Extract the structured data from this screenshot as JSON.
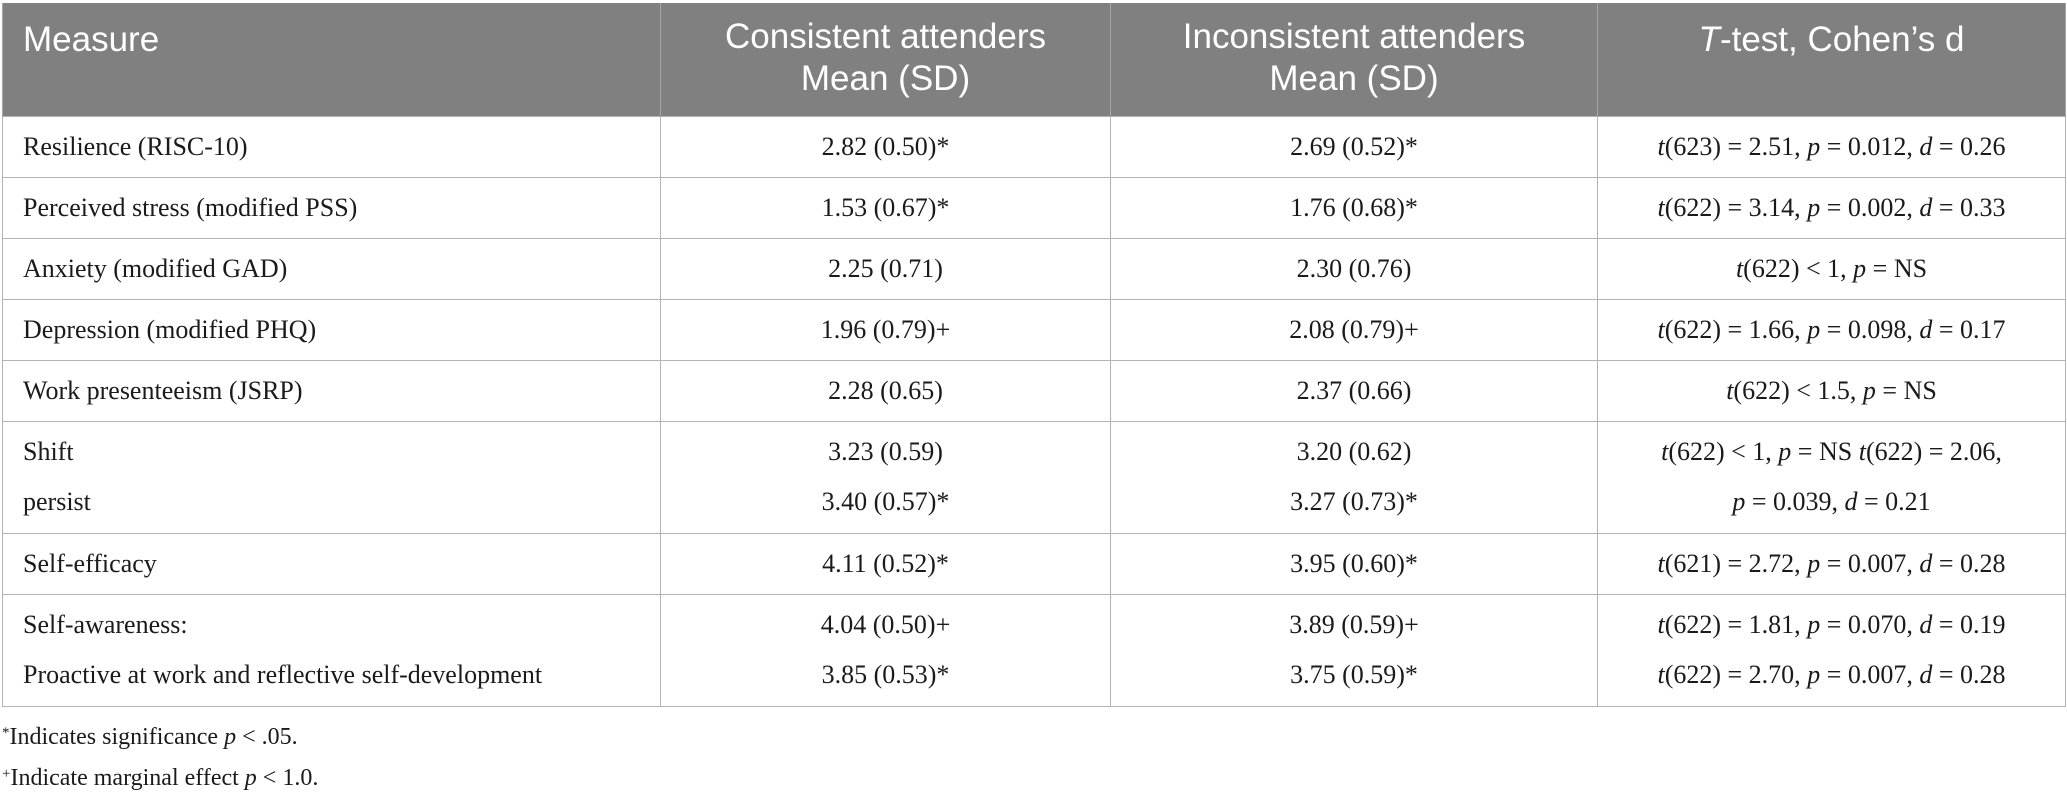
{
  "table": {
    "headers": [
      {
        "lines": [
          "Measure"
        ]
      },
      {
        "lines": [
          "Consistent attenders",
          "Mean (SD)"
        ]
      },
      {
        "lines": [
          "Inconsistent attenders",
          "Mean (SD)"
        ]
      },
      {
        "lines": [
          "T-test, Cohen’s d"
        ]
      }
    ],
    "rows": [
      {
        "measure": [
          "Resilience (RISC-10)"
        ],
        "consistent": [
          "2.82 (0.50)*"
        ],
        "inconsistent": [
          "2.69 (0.52)*"
        ],
        "test": [
          "t(623) = 2.51, p = 0.012, d = 0.26"
        ]
      },
      {
        "measure": [
          "Perceived stress (modified PSS)"
        ],
        "consistent": [
          "1.53 (0.67)*"
        ],
        "inconsistent": [
          "1.76 (0.68)*"
        ],
        "test": [
          "t(622) = 3.14, p = 0.002, d = 0.33"
        ]
      },
      {
        "measure": [
          "Anxiety (modified GAD)"
        ],
        "consistent": [
          "2.25 (0.71)"
        ],
        "inconsistent": [
          "2.30 (0.76)"
        ],
        "test": [
          "t(622) < 1, p = NS"
        ]
      },
      {
        "measure": [
          "Depression (modified PHQ)"
        ],
        "consistent": [
          "1.96 (0.79)+"
        ],
        "inconsistent": [
          "2.08 (0.79)+"
        ],
        "test": [
          "t(622) = 1.66, p = 0.098, d = 0.17"
        ]
      },
      {
        "measure": [
          "Work presenteeism (JSRP)"
        ],
        "consistent": [
          "2.28 (0.65)"
        ],
        "inconsistent": [
          "2.37 (0.66)"
        ],
        "test": [
          "t(622) < 1.5, p = NS"
        ]
      },
      {
        "measure": [
          "Shift",
          "persist"
        ],
        "consistent": [
          "3.23 (0.59)",
          "3.40 (0.57)*"
        ],
        "inconsistent": [
          "3.20 (0.62)",
          "3.27 (0.73)*"
        ],
        "test": [
          "t(622) < 1, p = NS t(622) = 2.06,",
          "p = 0.039, d = 0.21"
        ]
      },
      {
        "measure": [
          "Self-efficacy"
        ],
        "consistent": [
          "4.11 (0.52)*"
        ],
        "inconsistent": [
          "3.95 (0.60)*"
        ],
        "test": [
          "t(621) = 2.72, p = 0.007, d = 0.28"
        ]
      },
      {
        "measure": [
          "Self-awareness:",
          "Proactive at work and reflective self-development"
        ],
        "consistent": [
          "4.04 (0.50)+",
          "3.85 (0.53)*"
        ],
        "inconsistent": [
          "3.89 (0.59)+",
          "3.75 (0.59)*"
        ],
        "test": [
          "t(622) = 1.81, p = 0.070, d = 0.19",
          "t(622) = 2.70, p = 0.007, d = 0.28"
        ]
      }
    ]
  },
  "footnotes": [
    {
      "mark": "*",
      "text": "Indicates significance p < .05."
    },
    {
      "mark": "+",
      "text": "Indicate marginal effect p < 1.0."
    }
  ]
}
